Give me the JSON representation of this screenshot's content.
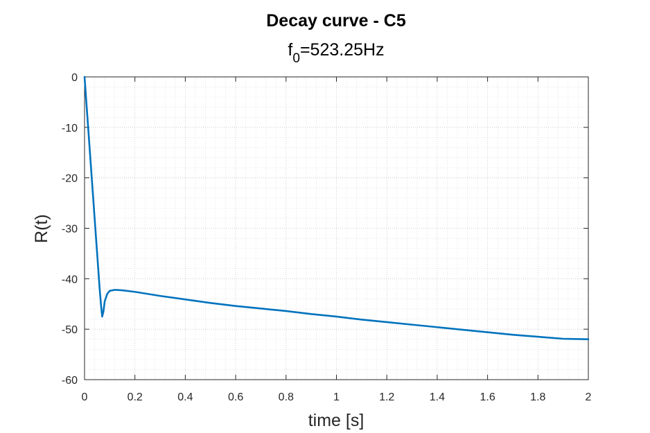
{
  "chart_data": {
    "type": "line",
    "title": "Decay curve - C5",
    "subtitle": {
      "prefix": "f",
      "subscript": "0",
      "suffix": "=523.25Hz"
    },
    "xlabel": "time [s]",
    "ylabel": "R(t)",
    "xlim": [
      0,
      2
    ],
    "ylim": [
      -60,
      0
    ],
    "xticks": [
      "0",
      "0.2",
      "0.4",
      "0.6",
      "0.8",
      "1",
      "1.2",
      "1.4",
      "1.6",
      "1.8",
      "2"
    ],
    "yticks": [
      "0",
      "-10",
      "-20",
      "-30",
      "-40",
      "-50",
      "-60"
    ],
    "grid": true,
    "minor_grid": true,
    "series": [
      {
        "color": "#0072BD",
        "x": [
          0,
          0.01,
          0.02,
          0.03,
          0.04,
          0.05,
          0.06,
          0.065,
          0.07,
          0.075,
          0.08,
          0.09,
          0.1,
          0.12,
          0.15,
          0.2,
          0.3,
          0.4,
          0.5,
          0.6,
          0.7,
          0.8,
          0.9,
          1.0,
          1.1,
          1.2,
          1.3,
          1.4,
          1.5,
          1.6,
          1.7,
          1.8,
          1.9,
          2.0
        ],
        "y": [
          0,
          -7,
          -14,
          -21,
          -28,
          -35,
          -42,
          -45,
          -47.5,
          -46.5,
          -44.5,
          -43,
          -42.4,
          -42.2,
          -42.3,
          -42.6,
          -43.4,
          -44.1,
          -44.8,
          -45.4,
          -45.9,
          -46.4,
          -47.0,
          -47.5,
          -48.1,
          -48.6,
          -49.1,
          -49.6,
          -50.1,
          -50.6,
          -51.1,
          -51.5,
          -51.9,
          -52.0
        ]
      }
    ]
  }
}
